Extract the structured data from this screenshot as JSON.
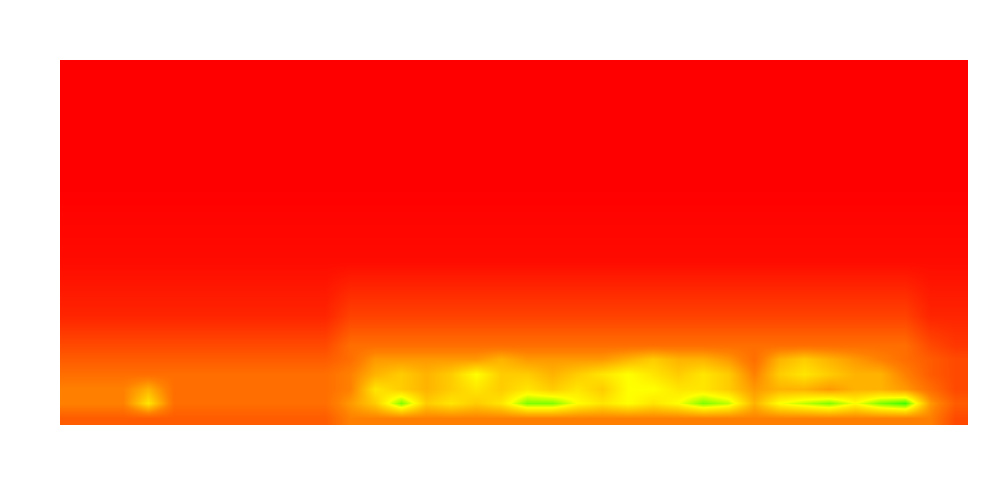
{
  "chart_data": {
    "type": "heatmap",
    "tick_labels": false,
    "grid": false,
    "xlim": [
      -0.5,
      35.5
    ],
    "ylim": [
      0,
      100
    ],
    "zlim": [
      0,
      1
    ],
    "x": [
      0,
      1,
      2,
      3,
      4,
      5,
      6,
      7,
      8,
      9,
      10,
      11,
      12,
      13,
      14,
      15,
      16,
      17,
      18,
      19,
      20,
      21,
      22,
      23,
      24,
      25,
      26,
      27,
      28,
      29,
      30,
      31,
      32,
      33,
      34,
      35
    ],
    "y": [
      2,
      6,
      10,
      14,
      18,
      22,
      30,
      45,
      65,
      90
    ],
    "cells": [
      [
        0.25,
        0.25,
        0.25,
        0.25,
        0.25,
        0.25,
        0.25,
        0.25,
        0.25,
        0.25,
        0.25,
        0.35,
        0.35,
        0.35,
        0.35,
        0.35,
        0.35,
        0.35,
        0.35,
        0.35,
        0.35,
        0.35,
        0.35,
        0.35,
        0.35,
        0.35,
        0.35,
        0.35,
        0.35,
        0.35,
        0.35,
        0.35,
        0.35,
        0.35,
        0.35,
        0.2
      ],
      [
        0.35,
        0.35,
        0.35,
        0.55,
        0.3,
        0.3,
        0.3,
        0.3,
        0.3,
        0.3,
        0.3,
        0.4,
        0.5,
        0.7,
        0.5,
        0.55,
        0.5,
        0.55,
        0.7,
        0.7,
        0.6,
        0.55,
        0.6,
        0.55,
        0.6,
        0.7,
        0.65,
        0.45,
        0.6,
        0.65,
        0.7,
        0.6,
        0.7,
        0.75,
        0.4,
        0.25
      ],
      [
        0.35,
        0.35,
        0.35,
        0.45,
        0.3,
        0.3,
        0.3,
        0.3,
        0.3,
        0.3,
        0.3,
        0.35,
        0.55,
        0.5,
        0.45,
        0.5,
        0.55,
        0.5,
        0.55,
        0.5,
        0.55,
        0.5,
        0.6,
        0.6,
        0.55,
        0.55,
        0.5,
        0.4,
        0.45,
        0.45,
        0.4,
        0.45,
        0.45,
        0.4,
        0.3,
        0.2
      ],
      [
        0.3,
        0.3,
        0.3,
        0.3,
        0.3,
        0.3,
        0.3,
        0.3,
        0.3,
        0.3,
        0.3,
        0.35,
        0.45,
        0.5,
        0.45,
        0.5,
        0.6,
        0.5,
        0.5,
        0.45,
        0.5,
        0.55,
        0.6,
        0.55,
        0.5,
        0.55,
        0.5,
        0.35,
        0.5,
        0.55,
        0.5,
        0.45,
        0.45,
        0.35,
        0.25,
        0.2
      ],
      [
        0.25,
        0.25,
        0.25,
        0.25,
        0.25,
        0.25,
        0.25,
        0.25,
        0.25,
        0.25,
        0.25,
        0.3,
        0.4,
        0.4,
        0.4,
        0.4,
        0.4,
        0.45,
        0.4,
        0.4,
        0.4,
        0.4,
        0.45,
        0.5,
        0.45,
        0.45,
        0.4,
        0.3,
        0.45,
        0.5,
        0.45,
        0.4,
        0.35,
        0.3,
        0.25,
        0.2
      ],
      [
        0.2,
        0.2,
        0.2,
        0.2,
        0.2,
        0.2,
        0.2,
        0.2,
        0.2,
        0.2,
        0.2,
        0.3,
        0.3,
        0.3,
        0.3,
        0.3,
        0.3,
        0.3,
        0.3,
        0.3,
        0.3,
        0.3,
        0.3,
        0.3,
        0.3,
        0.3,
        0.3,
        0.3,
        0.3,
        0.3,
        0.3,
        0.3,
        0.3,
        0.3,
        0.2,
        0.15
      ],
      [
        0.1,
        0.1,
        0.1,
        0.1,
        0.1,
        0.1,
        0.1,
        0.1,
        0.1,
        0.1,
        0.1,
        0.18,
        0.18,
        0.18,
        0.18,
        0.18,
        0.18,
        0.18,
        0.18,
        0.18,
        0.18,
        0.18,
        0.18,
        0.18,
        0.18,
        0.18,
        0.18,
        0.18,
        0.18,
        0.18,
        0.18,
        0.18,
        0.18,
        0.18,
        0.1,
        0.1
      ],
      [
        0.03,
        0.03,
        0.03,
        0.03,
        0.03,
        0.03,
        0.03,
        0.03,
        0.03,
        0.03,
        0.03,
        0.03,
        0.03,
        0.03,
        0.03,
        0.03,
        0.03,
        0.03,
        0.03,
        0.03,
        0.03,
        0.03,
        0.03,
        0.03,
        0.03,
        0.03,
        0.03,
        0.03,
        0.03,
        0.03,
        0.03,
        0.03,
        0.03,
        0.03,
        0.03,
        0.03
      ],
      [
        0,
        0,
        0,
        0,
        0,
        0,
        0,
        0,
        0,
        0,
        0,
        0,
        0,
        0,
        0,
        0,
        0,
        0,
        0,
        0,
        0,
        0,
        0,
        0,
        0,
        0,
        0,
        0,
        0,
        0,
        0,
        0,
        0,
        0,
        0,
        0
      ],
      [
        0,
        0,
        0,
        0,
        0,
        0,
        0,
        0,
        0,
        0,
        0,
        0,
        0,
        0,
        0,
        0,
        0,
        0,
        0,
        0,
        0,
        0,
        0,
        0,
        0,
        0,
        0,
        0,
        0,
        0,
        0,
        0,
        0,
        0,
        0,
        0
      ]
    ]
  }
}
